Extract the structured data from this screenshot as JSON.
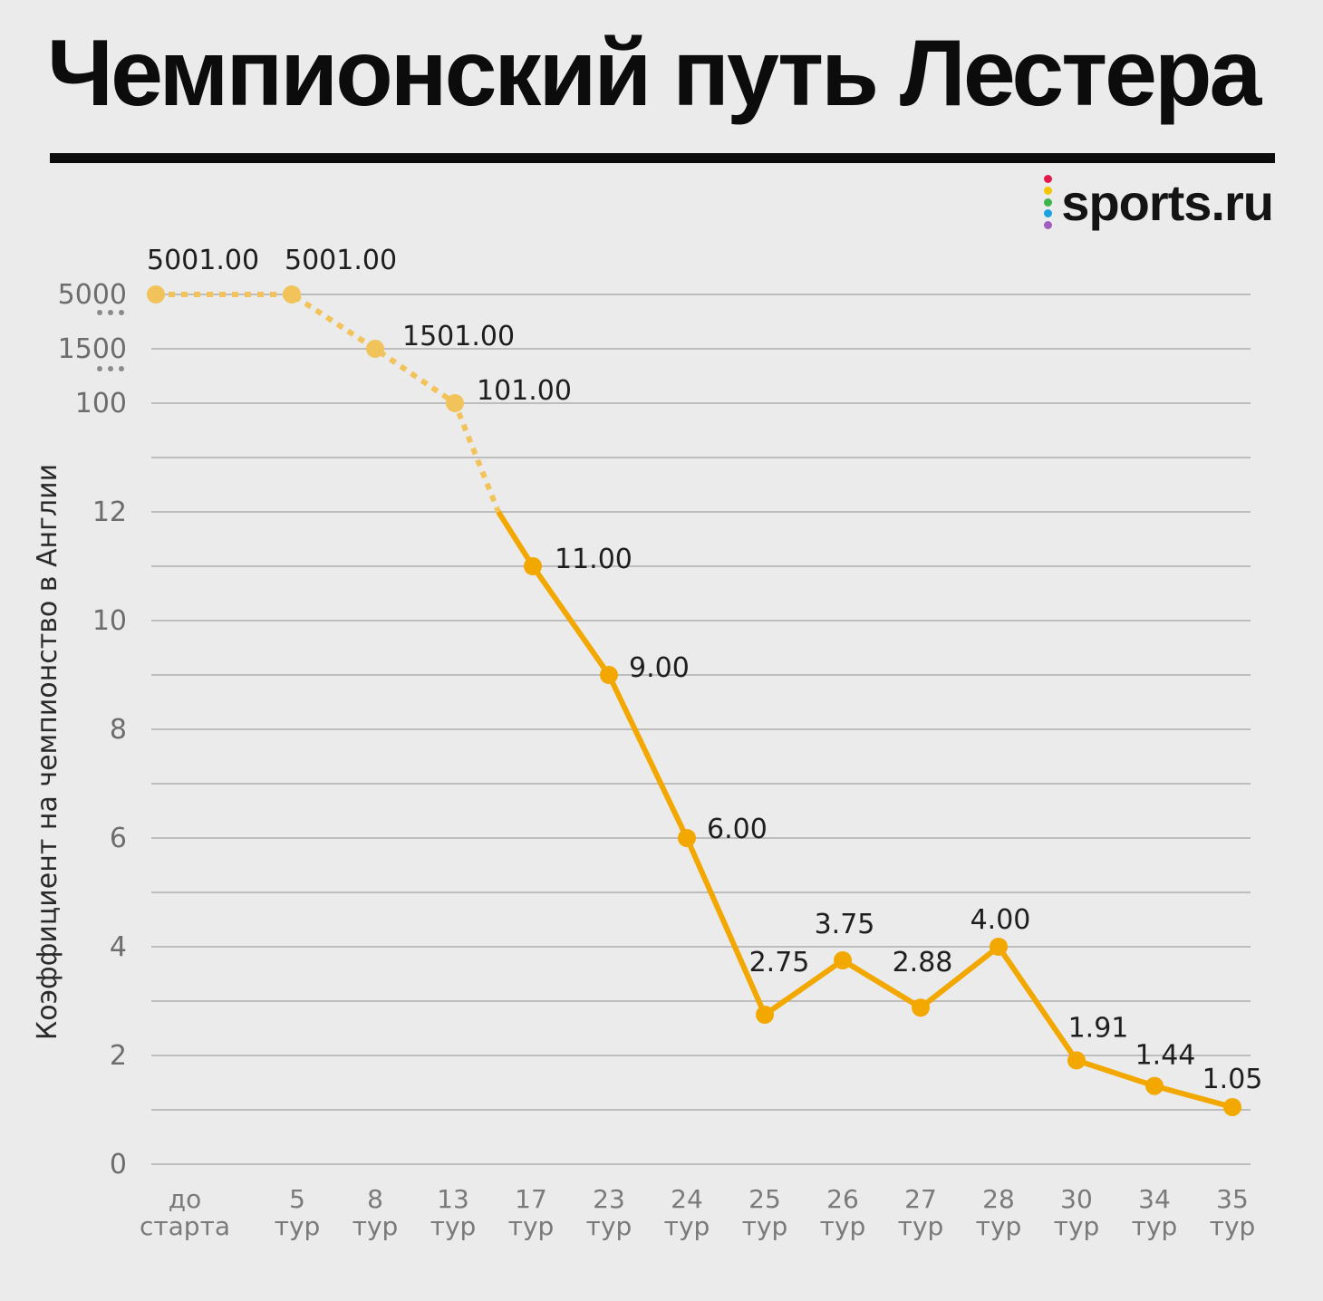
{
  "title": "Чемпионский путь Лестера",
  "brand": {
    "name": "sports.ru",
    "dot_colors": [
      "#e6194b",
      "#f2c500",
      "#3cb44b",
      "#1aa3e0",
      "#a05fbf"
    ]
  },
  "colors": {
    "line": "#f2a800",
    "line_faded": "#f2c35a",
    "grid": "#bdbdbd"
  },
  "chart_data": {
    "type": "line",
    "title": "Чемпионский путь Лестера",
    "ylabel": "Коэффициент на чемпионство в Англии",
    "xlabel": "",
    "scale": "broken y-axis: 0–12 linear, then compressed breaks at 100, 1500, 5000",
    "ylim": [
      0,
      5000
    ],
    "grid": true,
    "yticks": [
      "0",
      "2",
      "4",
      "6",
      "8",
      "10",
      "12",
      "100",
      "1500",
      "5000"
    ],
    "categories": [
      [
        "до",
        "старта"
      ],
      [
        "5",
        "тур"
      ],
      [
        "8",
        "тур"
      ],
      [
        "13",
        "тур"
      ],
      [
        "17",
        "тур"
      ],
      [
        "23",
        "тур"
      ],
      [
        "24",
        "тур"
      ],
      [
        "25",
        "тур"
      ],
      [
        "26",
        "тур"
      ],
      [
        "27",
        "тур"
      ],
      [
        "28",
        "тур"
      ],
      [
        "30",
        "тур"
      ],
      [
        "34",
        "тур"
      ],
      [
        "35",
        "тур"
      ]
    ],
    "points": [
      {
        "round": "до старта",
        "value": 5001.0,
        "label": "5001.00"
      },
      {
        "round": "5 тур",
        "value": 5001.0,
        "label": "5001.00"
      },
      {
        "round": "8 тур",
        "value": 1501.0,
        "label": "1501.00"
      },
      {
        "round": "13 тур",
        "value": 101.0,
        "label": "101.00"
      },
      {
        "round": "17 тур",
        "value": 11.0,
        "label": "11.00"
      },
      {
        "round": "23 тур",
        "value": 9.0,
        "label": "9.00"
      },
      {
        "round": "24 тур",
        "value": 6.0,
        "label": "6.00"
      },
      {
        "round": "25 тур",
        "value": 2.75,
        "label": "2.75"
      },
      {
        "round": "26 тур",
        "value": 3.75,
        "label": "3.75"
      },
      {
        "round": "27 тур",
        "value": 2.88,
        "label": "2.88"
      },
      {
        "round": "28 тур",
        "value": 4.0,
        "label": "4.00"
      },
      {
        "round": "30 тур",
        "value": 1.91,
        "label": "1.91"
      },
      {
        "round": "34 тур",
        "value": 1.44,
        "label": "1.44"
      },
      {
        "round": "35 тур",
        "value": 1.05,
        "label": "1.05"
      }
    ]
  }
}
